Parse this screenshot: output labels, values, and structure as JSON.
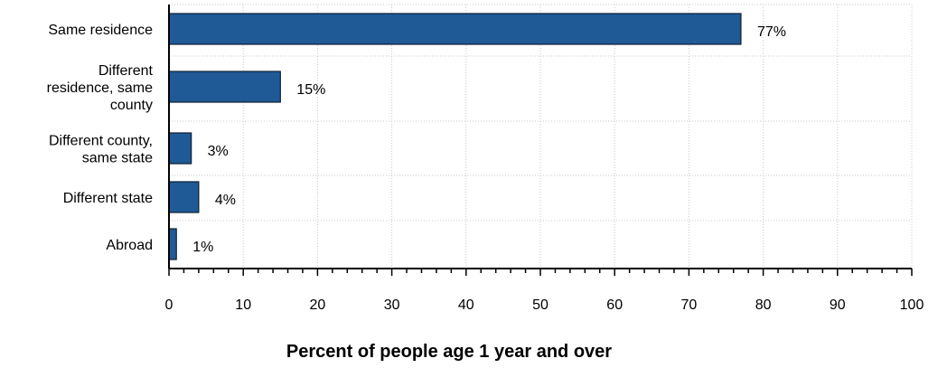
{
  "chart_data": {
    "type": "bar",
    "orientation": "horizontal",
    "categories": [
      [
        "Same residence"
      ],
      [
        "Different",
        "residence, same",
        "county"
      ],
      [
        "Different county,",
        "same state"
      ],
      [
        "Different state"
      ],
      [
        "Abroad"
      ]
    ],
    "values": [
      77,
      15,
      3,
      4,
      1
    ],
    "data_labels": [
      "77%",
      "15%",
      "3%",
      "4%",
      "1%"
    ],
    "xlabel": "Percent of people age 1 year and over",
    "ylabel": "",
    "xlim": [
      0,
      100
    ],
    "xticks": [
      0,
      10,
      20,
      30,
      40,
      50,
      60,
      70,
      80,
      90,
      100
    ],
    "grid": "vertical dotted",
    "bar_color": "#1F5A96",
    "bar_edge_color": "#0D1F33",
    "grid_color": "#C8C8C8"
  }
}
